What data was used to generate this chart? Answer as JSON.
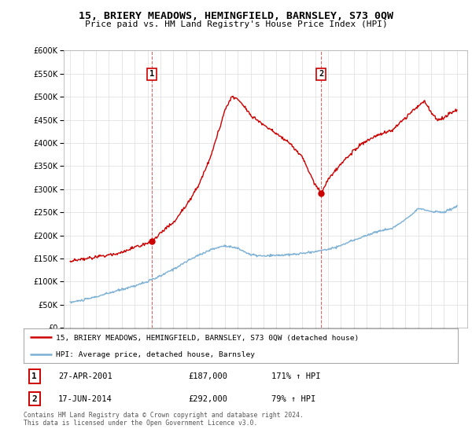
{
  "title": "15, BRIERY MEADOWS, HEMINGFIELD, BARNSLEY, S73 0QW",
  "subtitle": "Price paid vs. HM Land Registry's House Price Index (HPI)",
  "legend_label_red": "15, BRIERY MEADOWS, HEMINGFIELD, BARNSLEY, S73 0QW (detached house)",
  "legend_label_blue": "HPI: Average price, detached house, Barnsley",
  "footer": "Contains HM Land Registry data © Crown copyright and database right 2024.\nThis data is licensed under the Open Government Licence v3.0.",
  "sale1": {
    "label": "1",
    "date": "27-APR-2001",
    "price": 187000,
    "hpi": "171% ↑ HPI",
    "x": 2001.32
  },
  "sale2": {
    "label": "2",
    "date": "17-JUN-2014",
    "price": 292000,
    "hpi": "79% ↑ HPI",
    "x": 2014.46
  },
  "ylim": [
    0,
    600000
  ],
  "xlim_start": 1994.5,
  "xlim_end": 2025.8,
  "background_color": "#ffffff",
  "grid_color": "#dddddd",
  "red_color": "#cc0000",
  "blue_color": "#7bafd4"
}
